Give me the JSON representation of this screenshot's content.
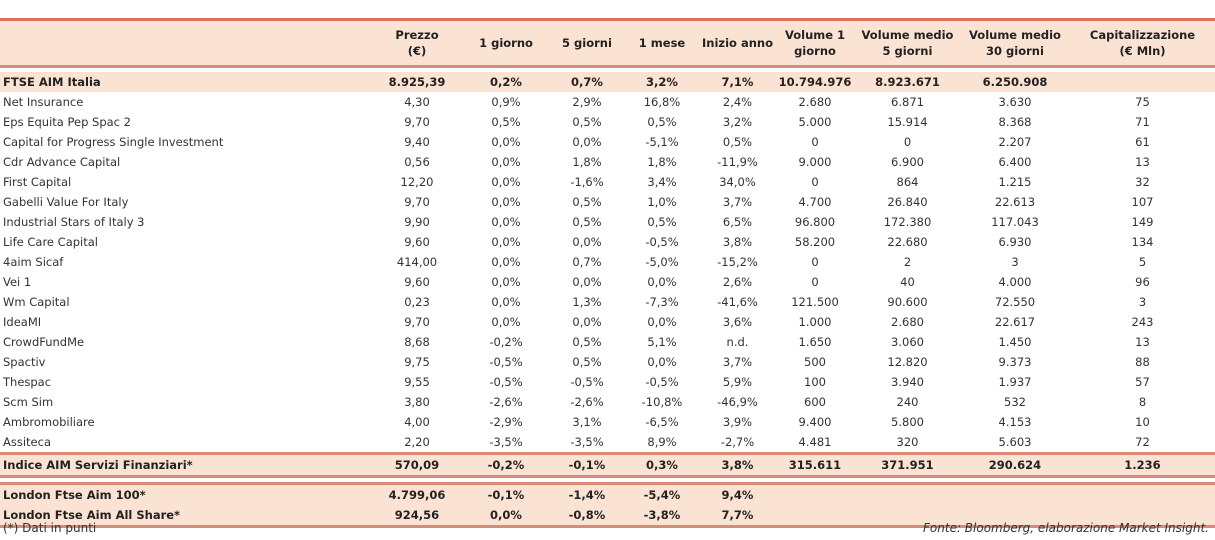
{
  "headers": [
    "",
    "Prezzo\n(€)",
    "1 giorno",
    "5 giorni",
    "1 mese",
    "Inizio anno",
    "Volume 1\ngiorno",
    "Volume medio\n5 giorni",
    "Volume medio\n30 giorni",
    "Capitalizzazione\n(€ Mln)"
  ],
  "index_row": [
    "FTSE AIM Italia",
    "8.925,39",
    "0,2%",
    "0,7%",
    "3,2%",
    "7,1%",
    "10.794.976",
    "8.923.671",
    "6.250.908",
    ""
  ],
  "rows": [
    [
      "Net Insurance",
      "4,30",
      "0,9%",
      "2,9%",
      "16,8%",
      "2,4%",
      "2.680",
      "6.871",
      "3.630",
      "75"
    ],
    [
      "Eps Equita Pep Spac 2",
      "9,70",
      "0,5%",
      "0,5%",
      "0,5%",
      "3,2%",
      "5.000",
      "15.914",
      "8.368",
      "71"
    ],
    [
      "Capital for Progress Single Investment",
      "9,40",
      "0,0%",
      "0,0%",
      "-5,1%",
      "0,5%",
      "0",
      "0",
      "2.207",
      "61"
    ],
    [
      "Cdr Advance Capital",
      "0,56",
      "0,0%",
      "1,8%",
      "1,8%",
      "-11,9%",
      "9.000",
      "6.900",
      "6.400",
      "13"
    ],
    [
      "First Capital",
      "12,20",
      "0,0%",
      "-1,6%",
      "3,4%",
      "34,0%",
      "0",
      "864",
      "1.215",
      "32"
    ],
    [
      "Gabelli Value For Italy",
      "9,70",
      "0,0%",
      "0,5%",
      "1,0%",
      "3,7%",
      "4.700",
      "26.840",
      "22.613",
      "107"
    ],
    [
      "Industrial Stars of Italy 3",
      "9,90",
      "0,0%",
      "0,5%",
      "0,5%",
      "6,5%",
      "96.800",
      "172.380",
      "117.043",
      "149"
    ],
    [
      "Life Care Capital",
      "9,60",
      "0,0%",
      "0,0%",
      "-0,5%",
      "3,8%",
      "58.200",
      "22.680",
      "6.930",
      "134"
    ],
    [
      "4aim Sicaf",
      "414,00",
      "0,0%",
      "0,7%",
      "-5,0%",
      "-15,2%",
      "0",
      "2",
      "3",
      "5"
    ],
    [
      "Vei 1",
      "9,60",
      "0,0%",
      "0,0%",
      "0,0%",
      "2,6%",
      "0",
      "40",
      "4.000",
      "96"
    ],
    [
      "Wm Capital",
      "0,23",
      "0,0%",
      "1,3%",
      "-7,3%",
      "-41,6%",
      "121.500",
      "90.600",
      "72.550",
      "3"
    ],
    [
      "IdeaMI",
      "9,70",
      "0,0%",
      "0,0%",
      "0,0%",
      "3,6%",
      "1.000",
      "2.680",
      "22.617",
      "243"
    ],
    [
      "CrowdFundMe",
      "8,68",
      "-0,2%",
      "0,5%",
      "5,1%",
      "n.d.",
      "1.650",
      "3.060",
      "1.450",
      "13"
    ],
    [
      "Spactiv",
      "9,75",
      "-0,5%",
      "0,5%",
      "0,0%",
      "3,7%",
      "500",
      "12.820",
      "9.373",
      "88"
    ],
    [
      "Thespac",
      "9,55",
      "-0,5%",
      "-0,5%",
      "-0,5%",
      "5,9%",
      "100",
      "3.940",
      "1.937",
      "57"
    ],
    [
      "Scm Sim",
      "3,80",
      "-2,6%",
      "-2,6%",
      "-10,8%",
      "-46,9%",
      "600",
      "240",
      "532",
      "8"
    ],
    [
      "Ambromobiliare",
      "4,00",
      "-2,9%",
      "3,1%",
      "-6,5%",
      "3,9%",
      "9.400",
      "5.800",
      "4.153",
      "10"
    ],
    [
      "Assiteca",
      "2,20",
      "-3,5%",
      "-3,5%",
      "8,9%",
      "-2,7%",
      "4.481",
      "320",
      "5.603",
      "72"
    ]
  ],
  "sector_row": [
    "Indice AIM Servizi Finanziari*",
    "570,09",
    "-0,2%",
    "-0,1%",
    "0,3%",
    "3,8%",
    "315.611",
    "371.951",
    "290.624",
    "1.236"
  ],
  "london_rows": [
    [
      "London Ftse Aim 100*",
      "4.799,06",
      "-0,1%",
      "-1,4%",
      "-5,4%",
      "9,4%",
      "",
      "",
      "",
      ""
    ],
    [
      "London Ftse Aim All Share*",
      "924,56",
      "0,0%",
      "-0,8%",
      "-3,8%",
      "7,7%",
      "",
      "",
      "",
      ""
    ]
  ],
  "footer": {
    "note": "(*) Dati in punti",
    "source": "Fonte: Bloomberg, elaborazione Market Insight."
  }
}
